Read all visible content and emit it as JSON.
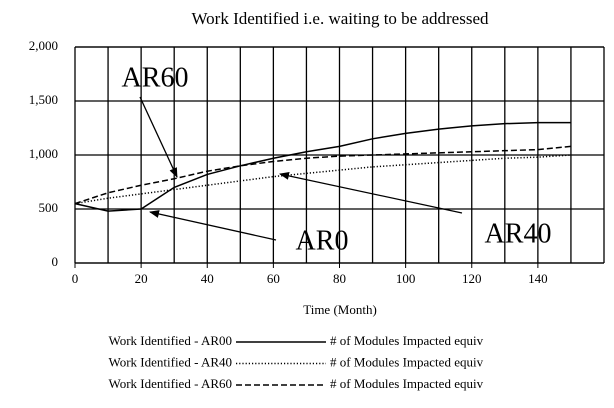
{
  "chart_data": {
    "type": "line",
    "title": "Work Identified i.e. waiting to be addressed",
    "xlabel": "Time (Month)",
    "x": [
      0,
      10,
      20,
      30,
      40,
      50,
      60,
      70,
      80,
      90,
      100,
      110,
      120,
      130,
      140,
      150
    ],
    "series": [
      {
        "name": "Work Identified - AR00",
        "color": "#000000",
        "dash": "solid",
        "values": [
          550,
          480,
          500,
          700,
          820,
          900,
          970,
          1030,
          1080,
          1150,
          1200,
          1240,
          1270,
          1290,
          1300,
          1300
        ]
      },
      {
        "name": "Work Identified - AR40",
        "color": "#000000",
        "dash": "dotted",
        "values": [
          550,
          600,
          640,
          680,
          720,
          760,
          800,
          830,
          860,
          890,
          910,
          930,
          950,
          970,
          980,
          1000
        ]
      },
      {
        "name": "Work Identified - AR60",
        "color": "#000000",
        "dash": "dashed",
        "values": [
          550,
          650,
          720,
          780,
          850,
          900,
          940,
          970,
          990,
          1000,
          1010,
          1020,
          1030,
          1040,
          1050,
          1080
        ]
      }
    ],
    "legend_notes": [
      "# of Modules Impacted equiv",
      "# of Modules Impacted equiv",
      "# of Modules Impacted equiv"
    ],
    "annotations": [
      "AR60",
      "AR0",
      "AR40"
    ],
    "xlim": [
      0,
      160
    ],
    "xticks": [
      0,
      20,
      40,
      60,
      80,
      100,
      120,
      140
    ],
    "xgrid": [
      10,
      20,
      30,
      40,
      50,
      60,
      70,
      80,
      90,
      100,
      110,
      120,
      130,
      140,
      150,
      160
    ],
    "ylim": [
      0,
      2000
    ],
    "yticks": [
      0,
      500,
      {
        "value": 1000,
        "label": "1,000"
      },
      {
        "value": 1500,
        "label": "1,500"
      },
      {
        "value": 2000,
        "label": "2,000"
      }
    ],
    "grid": true
  }
}
